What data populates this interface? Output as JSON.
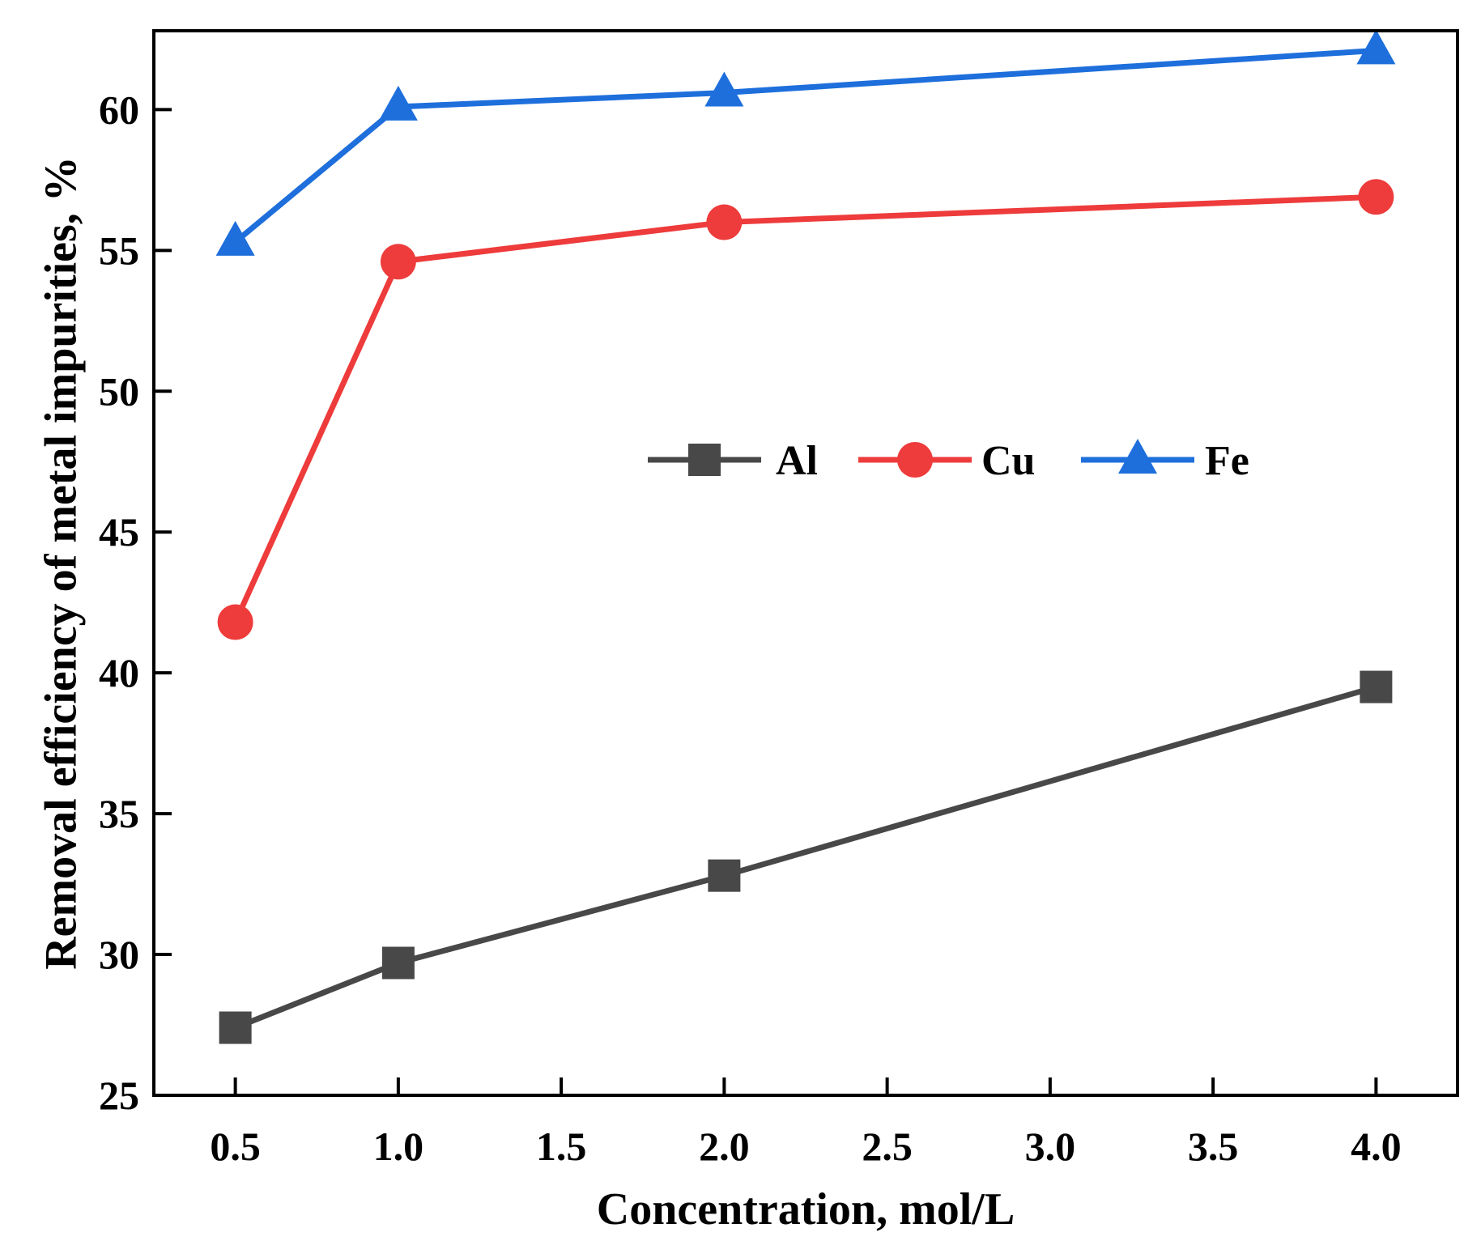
{
  "chart_data": {
    "type": "line",
    "title": "",
    "xlabel": "Concentration, mol/L",
    "ylabel": "Removal efficiency of metal impurities, %",
    "xlim": [
      0.25,
      4.25
    ],
    "ylim": [
      25,
      62.8
    ],
    "xticks": [
      0.5,
      1.0,
      1.5,
      2.0,
      2.5,
      3.0,
      3.5,
      4.0
    ],
    "xtick_labels": [
      "0.5",
      "1.0",
      "1.5",
      "2.0",
      "2.5",
      "3.0",
      "3.5",
      "4.0"
    ],
    "yticks": [
      25,
      30,
      35,
      40,
      45,
      50,
      55,
      60
    ],
    "ytick_labels": [
      "25",
      "30",
      "35",
      "40",
      "45",
      "50",
      "55",
      "60"
    ],
    "grid": false,
    "legend_position": "center-right",
    "series": [
      {
        "name": "Al",
        "color": "#484848",
        "marker": "square",
        "x": [
          0.5,
          1.0,
          2.0,
          4.0
        ],
        "y": [
          27.4,
          29.7,
          32.8,
          39.5
        ]
      },
      {
        "name": "Cu",
        "color": "#ee3b3b",
        "marker": "circle",
        "x": [
          0.5,
          1.0,
          2.0,
          4.0
        ],
        "y": [
          41.8,
          54.6,
          56.0,
          56.9
        ]
      },
      {
        "name": "Fe",
        "color": "#1e6fdc",
        "marker": "triangle",
        "x": [
          0.5,
          1.0,
          2.0,
          4.0
        ],
        "y": [
          55.3,
          60.1,
          60.6,
          62.1
        ]
      }
    ]
  }
}
